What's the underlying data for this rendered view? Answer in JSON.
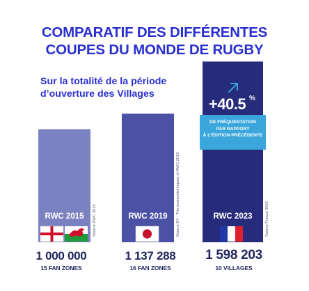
{
  "title": {
    "line1": "COMPARATIF DES DIFFÉRENTES",
    "line2": "COUPES DU MONDE DE RUGBY"
  },
  "subtitle": {
    "line1": "Sur la totalité de la période",
    "line2": "d’ouverture des Villages"
  },
  "colors": {
    "title": "#2a2fd0",
    "bar_2015": "#7b82c2",
    "bar_2019": "#4b52a6",
    "bar_2023": "#262b7b",
    "callout": "#3aa6dc",
    "value_text": "#22265c"
  },
  "chart_data": {
    "type": "bar",
    "categories": [
      "RWC 2015",
      "RWC 2019",
      "RWC 2023"
    ],
    "values": [
      1000000,
      1137288,
      1598203
    ],
    "value_labels": [
      "1 000 000",
      "1 137 288",
      "1 598 203"
    ],
    "sublabels": [
      "15 FAN ZONES",
      "16 FAN ZONES",
      "10 VILLAGES"
    ],
    "sources": [
      "Source RWC 2015",
      "Source EY - The economist impact of RWC 2019",
      "Source France 2023"
    ],
    "flags": [
      [
        "england-flag-icon",
        "wales-flag-icon"
      ],
      [
        "japan-flag-icon"
      ],
      [
        "france-flag-icon"
      ]
    ],
    "ylim": [
      0,
      1650000
    ],
    "annotation": {
      "value": "+40.5",
      "unit": "%",
      "icon": "arrow-up-right-icon",
      "text_lines": [
        "DE FRÉQUENTATION",
        "PAR RAPPORT",
        "À L’ÉDITION PRÉCÉDENTE"
      ]
    }
  }
}
